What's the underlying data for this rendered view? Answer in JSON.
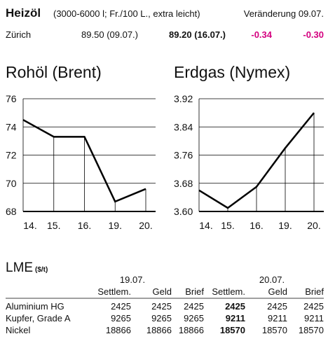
{
  "heizoel": {
    "title": "Heizöl",
    "note": "(3000-6000 l; Fr./100 L., extra leicht)",
    "change_header": "Veränderung 09.07.",
    "row": [
      "Zürich",
      "89.50 (09.07.)",
      "89.20 (16.07.)",
      "-0.34",
      "-0.30"
    ]
  },
  "chart_data": [
    {
      "type": "line",
      "title": "Rohöl (Brent)",
      "categories": [
        "14.",
        "15.",
        "16.",
        "19.",
        "20."
      ],
      "values": [
        74.5,
        73.3,
        73.3,
        68.7,
        69.6
      ],
      "color": "#000000",
      "ylim": [
        68,
        76
      ],
      "yticks": [
        68,
        70,
        72,
        74,
        76
      ],
      "grid": true
    },
    {
      "type": "line",
      "title": "Erdgas (Nymex)",
      "categories": [
        "14.",
        "15.",
        "16.",
        "19.",
        "20."
      ],
      "values": [
        3.66,
        3.61,
        3.67,
        3.78,
        3.88
      ],
      "color": "#000000",
      "ylim": [
        3.6,
        3.92
      ],
      "yticks": [
        {
          "value": 3.6,
          "label": "3.60"
        },
        3.68,
        3.76,
        3.84,
        3.92
      ],
      "grid": true
    }
  ],
  "lme": {
    "title": "LME",
    "unit": "($/t)",
    "dates": [
      "19.07.",
      "20.07."
    ],
    "columns": [
      "Settlem.",
      "Geld",
      "Brief",
      "Settlem.",
      "Geld",
      "Brief"
    ],
    "rows": [
      [
        "Aluminium HG",
        "2425",
        "2425",
        "2425",
        "2425",
        "2425",
        "2425"
      ],
      [
        "Kupfer, Grade A",
        "9265",
        "9265",
        "9265",
        "9211",
        "9211",
        "9211"
      ],
      [
        "Nickel",
        "18866",
        "18866",
        "18866",
        "18570",
        "18570",
        "18570"
      ]
    ]
  }
}
